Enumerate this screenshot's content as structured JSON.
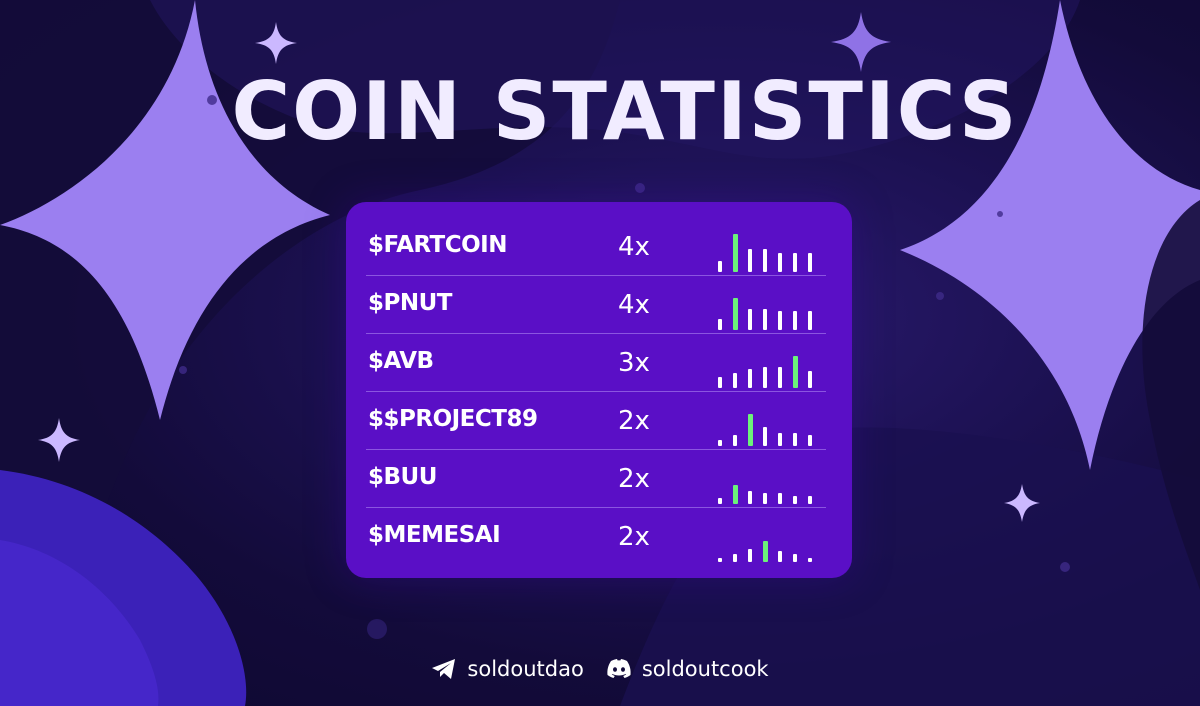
{
  "title": "COIN STATISTICS",
  "colors": {
    "background": "#130b3a",
    "card": "#5a0fc6",
    "accent_star": "#9b7ff0",
    "highlight_bar": "#6cf27a",
    "text": "#ffffff"
  },
  "coins": [
    {
      "name": "$FARTCOIN",
      "multiplier": "4x",
      "bars": [
        0.25,
        0.9,
        0.55,
        0.55,
        0.45,
        0.45,
        0.45
      ],
      "highlight": 1
    },
    {
      "name": "$PNUT",
      "multiplier": "4x",
      "bars": [
        0.25,
        0.75,
        0.5,
        0.5,
        0.45,
        0.45,
        0.45
      ],
      "highlight": 1
    },
    {
      "name": "$AVB",
      "multiplier": "3x",
      "bars": [
        0.25,
        0.35,
        0.45,
        0.5,
        0.5,
        0.75,
        0.4
      ],
      "highlight": 5
    },
    {
      "name": "$$PROJECT89",
      "multiplier": "2x",
      "bars": [
        0.15,
        0.25,
        0.75,
        0.45,
        0.3,
        0.3,
        0.25
      ],
      "highlight": 2
    },
    {
      "name": "$BUU",
      "multiplier": "2x",
      "bars": [
        0.15,
        0.45,
        0.3,
        0.25,
        0.25,
        0.2,
        0.2
      ],
      "highlight": 1
    },
    {
      "name": "$MEMESAI",
      "multiplier": "2x",
      "bars": [
        0.1,
        0.2,
        0.3,
        0.5,
        0.25,
        0.2,
        0.1
      ],
      "highlight": 3
    }
  ],
  "footer": {
    "telegram": {
      "icon": "telegram-icon",
      "handle": "soldoutdao"
    },
    "discord": {
      "icon": "discord-icon",
      "handle": "soldoutcook"
    }
  }
}
